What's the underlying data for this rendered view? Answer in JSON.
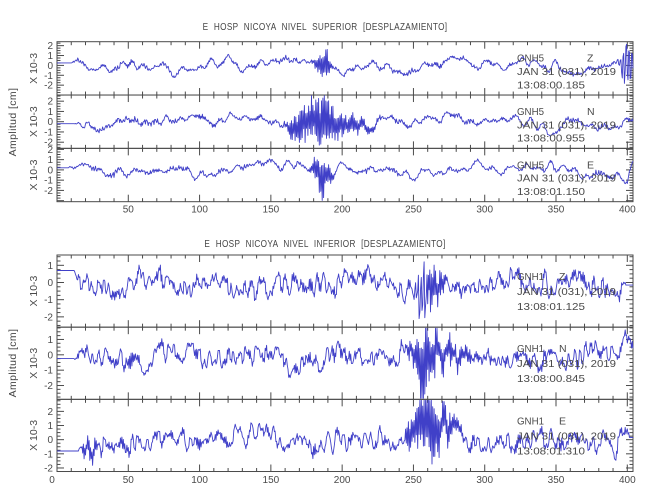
{
  "colors": {
    "background": "#ffffff",
    "trace": "#4040c8",
    "axis": "#4a4a4a",
    "text": "#4a4a4a"
  },
  "chart_data": {
    "type": "line",
    "x_axis": {
      "min": 0,
      "max": 404,
      "major_tick": 50,
      "minor_tick": 10
    },
    "panels": [
      {
        "title": "E HOSP NICOYA NIVEL SUPERIOR [DESPLAZAMIENTO]",
        "ylabel": "Amplitud [cm]",
        "scale_label": "X 10-3",
        "x_tick_labels": [
          50,
          100,
          150,
          200,
          250,
          300,
          350,
          400
        ],
        "comp_offset": 70,
        "traces": [
          {
            "station": "GNH5",
            "component": "Z",
            "date": "JAN 31 (031), 2019",
            "time": "13:08:00.185",
            "yticks": [
              2,
              1,
              0,
              -1,
              -2
            ],
            "ylim": [
              -3.0,
              2.4
            ],
            "synth": {
              "seed": 11,
              "noise": 0.42,
              "smooth": 4,
              "rough": 0.17,
              "wander": [
                [
                  150,
                  0.4
                ],
                [
                  55,
                  0.28
                ],
                [
                  23,
                  0.18
                ]
              ],
              "lead": [
                10,
                0.25
              ],
              "bursts": [
                {
                  "c": 187,
                  "w": 3.5,
                  "a": 1.7
                },
                {
                  "c": 400,
                  "w": 3.5,
                  "a": 2.2,
                  "f": 2
                }
              ]
            }
          },
          {
            "station": "GNH5",
            "component": "N",
            "date": "JAN 31 (031), 2019",
            "time": "13:08:00.955",
            "yticks": [
              2,
              1,
              0,
              -1,
              -2
            ],
            "ylim": [
              -2.6,
              2.6
            ],
            "synth": {
              "seed": 22,
              "noise": 0.42,
              "smooth": 4,
              "rough": 0.17,
              "wander": [
                [
                  170,
                  0.3
                ],
                [
                  45,
                  0.26
                ],
                [
                  26,
                  0.18
                ]
              ],
              "lead": [
                12,
                -0.2
              ],
              "tail": [
                404,
                -0.1
              ],
              "bursts": [
                {
                  "c": 184,
                  "w": 8,
                  "a": 2.6
                },
                {
                  "c": 205,
                  "w": 10,
                  "a": 1.0
                },
                {
                  "c": 168,
                  "w": 4,
                  "a": 1.3
                }
              ]
            }
          },
          {
            "station": "GNH5",
            "component": "E",
            "date": "JAN 31 (031), 2019",
            "time": "13:08:01.150",
            "yticks": [
              2,
              1,
              0,
              -1,
              -2
            ],
            "ylim": [
              -3.1,
              2.1
            ],
            "synth": {
              "seed": 33,
              "noise": 0.42,
              "smooth": 4,
              "rough": 0.17,
              "wander": [
                [
                  160,
                  0.32
                ],
                [
                  70,
                  0.26
                ],
                [
                  30,
                  0.18
                ]
              ],
              "lead": [
                8,
                0.2
              ],
              "tail": [
                400,
                0.85
              ],
              "bursts": [
                {
                  "c": 186,
                  "w": 4.5,
                  "a": 2.1
                }
              ]
            }
          }
        ]
      },
      {
        "title": "E HOSP NICOYA NIVEL INFERIOR [DESPLAZAMIENTO]",
        "ylabel": "Amplitud [cm]",
        "scale_label": "X 10-3",
        "x_tick_labels": [
          0,
          50,
          100,
          150,
          200,
          250,
          300,
          350,
          400
        ],
        "comp_offset": 42,
        "traces": [
          {
            "station": "GNH1",
            "component": "Z",
            "date": "JAN 31 (031), 2019",
            "time": "13:08:01.125",
            "yticks": [
              1,
              0,
              -1,
              -2
            ],
            "ylim": [
              -2.6,
              1.6
            ],
            "synth": {
              "seed": 44,
              "noise": 0.3,
              "smooth": 2,
              "rough": 0.36,
              "dc": -0.12,
              "wander": [
                [
                  130,
                  0.24
                ],
                [
                  50,
                  0.2
                ],
                [
                  22,
                  0.12
                ]
              ],
              "lead": [
                12,
                0.7
              ],
              "tail": [
                396,
                -0.15
              ],
              "bursts": [
                {
                  "c": 256,
                  "w": 3,
                  "a": 1.5,
                  "bias": -1.2,
                  "f": 2
                },
                {
                  "c": 263,
                  "w": 8,
                  "a": 0.8
                }
              ]
            }
          },
          {
            "station": "GNH1",
            "component": "N",
            "date": "JAN 31 (031), 2019",
            "time": "13:08:00.845",
            "yticks": [
              1,
              0,
              -1,
              -2
            ],
            "ylim": [
              -2.9,
              1.8
            ],
            "synth": {
              "seed": 55,
              "noise": 0.32,
              "smooth": 2,
              "rough": 0.38,
              "dc": -0.1,
              "wander": [
                [
                  150,
                  0.25
                ],
                [
                  60,
                  0.22
                ],
                [
                  25,
                  0.13
                ]
              ],
              "lead": [
                12,
                -0.25
              ],
              "tail": [
                404,
                1.2
              ],
              "bursts": [
                {
                  "c": 257,
                  "w": 4,
                  "a": 2.3,
                  "bias": -0.7
                },
                {
                  "c": 267,
                  "w": 14,
                  "a": 1.0
                },
                {
                  "c": 401,
                  "w": 2,
                  "a": 0.2,
                  "bias": 1.0
                }
              ]
            }
          },
          {
            "station": "GNH1",
            "component": "E",
            "date": "JAN 31 (031), 2019",
            "time": "13:08:01.310",
            "yticks": [
              2,
              1,
              0,
              -1,
              -2
            ],
            "ylim": [
              -2.25,
              2.85
            ],
            "synth": {
              "seed": 66,
              "noise": 0.32,
              "smooth": 2,
              "rough": 0.36,
              "wander": [
                [
                  140,
                  0.28
                ],
                [
                  65,
                  0.26
                ],
                [
                  28,
                  0.14
                ]
              ],
              "lead": [
                15,
                -0.8
              ],
              "tail": [
                399,
                0.15
              ],
              "bursts": [
                {
                  "c": 23,
                  "w": 5,
                  "a": 0.7,
                  "bias": -0.9
                },
                {
                  "c": 252,
                  "w": 5,
                  "a": 1.2,
                  "bias": 0.5
                },
                {
                  "c": 260,
                  "w": 5,
                  "a": 2.4,
                  "bias": 0.6
                },
                {
                  "c": 272,
                  "w": 9,
                  "a": 0.9,
                  "bias": 0.4
                },
                {
                  "c": 391,
                  "w": 2,
                  "a": 0.3,
                  "bias": -2.0
                }
              ]
            }
          }
        ]
      }
    ]
  }
}
